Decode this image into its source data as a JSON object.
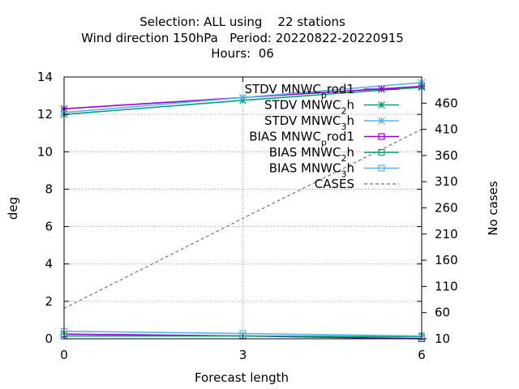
{
  "chart_data": {
    "type": "line",
    "title_lines": [
      "Selection: ALL using    22 stations",
      "Wind direction 150hPa   Period: 20220822-20220915",
      "Hours:  06"
    ],
    "xlabel": "Forecast length",
    "ylabel": "deg",
    "y2label": "No cases",
    "x": [
      0,
      3,
      6
    ],
    "xticks": [
      "0",
      "3",
      "6"
    ],
    "xlim": [
      0,
      6
    ],
    "ylim": [
      0,
      14
    ],
    "yticks": [
      "0",
      "2",
      "4",
      "6",
      "8",
      "10",
      "12",
      "14"
    ],
    "y2lim": [
      10,
      510
    ],
    "y2ticks": [
      "10",
      "60",
      "110",
      "160",
      "210",
      "260",
      "310",
      "360",
      "410",
      "460"
    ],
    "grid": true,
    "legend_position": "top-right",
    "series": [
      {
        "name": "STDV MNWC_prod1",
        "label_main": "STDV MNWC",
        "label_sub": "p",
        "label_tail": "rod1",
        "color": "#9400d3",
        "marker": "star",
        "dash": "solid",
        "axis": "y",
        "values": [
          12.3,
          12.9,
          13.5
        ]
      },
      {
        "name": "STDV MNWC_2h",
        "label_main": "STDV MNWC",
        "label_sub": "2",
        "label_tail": "h",
        "color": "#009e73",
        "marker": "star",
        "dash": "solid",
        "axis": "y",
        "values": [
          12.0,
          12.75,
          13.45
        ]
      },
      {
        "name": "STDV MNWC_3h",
        "label_main": "STDV MNWC",
        "label_sub": "3",
        "label_tail": "h",
        "color": "#56b4e9",
        "marker": "star",
        "dash": "solid",
        "axis": "y",
        "values": [
          12.1,
          12.9,
          13.7
        ]
      },
      {
        "name": "BIAS MNWC_prod1",
        "label_main": "BIAS MNWC",
        "label_sub": "p",
        "label_tail": "rod1",
        "color": "#9400d3",
        "marker": "square",
        "dash": "solid",
        "axis": "y",
        "values": [
          0.25,
          0.15,
          0.0
        ]
      },
      {
        "name": "BIAS MNWC_2h",
        "label_main": "BIAS MNWC",
        "label_sub": "2",
        "label_tail": "h",
        "color": "#009e73",
        "marker": "square",
        "dash": "solid",
        "axis": "y",
        "values": [
          0.15,
          0.15,
          0.1
        ]
      },
      {
        "name": "BIAS MNWC_3h",
        "label_main": "BIAS MNWC",
        "label_sub": "3",
        "label_tail": "h",
        "color": "#56b4e9",
        "marker": "square",
        "dash": "solid",
        "axis": "y",
        "values": [
          0.4,
          0.28,
          0.15
        ]
      },
      {
        "name": "CASES",
        "label_main": "CASES",
        "label_sub": "",
        "label_tail": "",
        "color": "#888888",
        "marker": "none",
        "dash": "dashed",
        "axis": "y2",
        "values": [
          68,
          240,
          410
        ]
      }
    ]
  }
}
